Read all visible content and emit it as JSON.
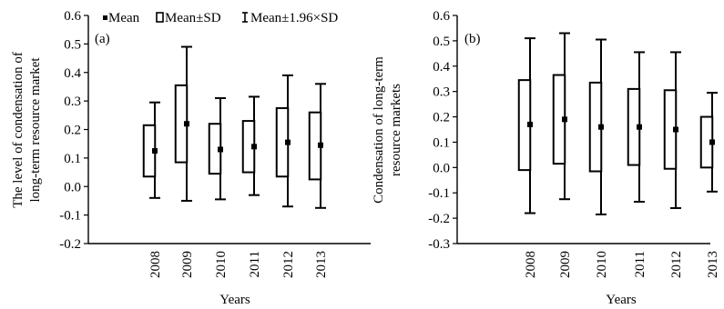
{
  "legend": {
    "mean_label": "Mean",
    "sd_label": "Mean±SD",
    "ci_label": "Mean±1.96×SD"
  },
  "chart_data": [
    {
      "type": "box",
      "panel_label": "(a)",
      "categories": [
        "2008",
        "2009",
        "2010",
        "2011",
        "2012",
        "2013"
      ],
      "xlabel": "Years",
      "ylabel_lines": [
        "The level of condensation of",
        "long-term resource market"
      ],
      "ylim": [
        -0.2,
        0.6
      ],
      "yticks": [
        -0.2,
        -0.1,
        0.0,
        0.1,
        0.2,
        0.3,
        0.4,
        0.5,
        0.6
      ],
      "ytick_labels": [
        "-0.2",
        "-0.1",
        "0.0",
        "0.1",
        "0.2",
        "0.3",
        "0.4",
        "0.5",
        "0.6"
      ],
      "mean": [
        0.125,
        0.22,
        0.13,
        0.14,
        0.155,
        0.145
      ],
      "sd_low": [
        0.035,
        0.085,
        0.045,
        0.05,
        0.035,
        0.025
      ],
      "sd_high": [
        0.215,
        0.355,
        0.22,
        0.23,
        0.275,
        0.26
      ],
      "ci_low": [
        -0.04,
        -0.05,
        -0.045,
        -0.03,
        -0.07,
        -0.075
      ],
      "ci_high": [
        0.295,
        0.49,
        0.31,
        0.315,
        0.39,
        0.36
      ],
      "legend": "top"
    },
    {
      "type": "box",
      "panel_label": "(b)",
      "categories": [
        "2008",
        "2009",
        "2010",
        "2011",
        "2012",
        "2013"
      ],
      "xlabel": "Years",
      "ylabel_lines": [
        "Condensation of long-term",
        "resource markets"
      ],
      "ylim": [
        -0.3,
        0.6
      ],
      "yticks": [
        -0.3,
        -0.2,
        -0.1,
        0.0,
        0.1,
        0.2,
        0.3,
        0.4,
        0.5,
        0.6
      ],
      "ytick_labels": [
        "-0.3",
        "-0.2",
        "-0.1",
        "0.0",
        "0.1",
        "0.2",
        "0.3",
        "0.4",
        "0.5",
        "0.6"
      ],
      "mean": [
        0.17,
        0.19,
        0.16,
        0.16,
        0.15,
        0.1
      ],
      "sd_low": [
        -0.01,
        0.015,
        -0.015,
        0.01,
        -0.005,
        0.0
      ],
      "sd_high": [
        0.345,
        0.365,
        0.335,
        0.31,
        0.305,
        0.2
      ],
      "ci_low": [
        -0.18,
        -0.125,
        -0.185,
        -0.135,
        -0.16,
        -0.095
      ],
      "ci_high": [
        0.51,
        0.53,
        0.505,
        0.455,
        0.455,
        0.295
      ]
    }
  ]
}
